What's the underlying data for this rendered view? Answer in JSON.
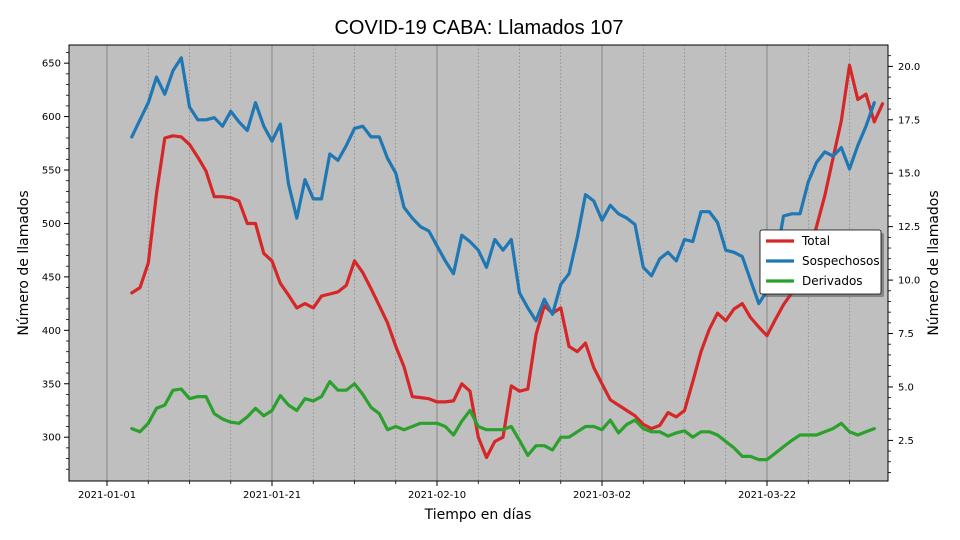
{
  "chart_data": {
    "type": "line",
    "title": "COVID-19 CABA: Llamados 107",
    "xlabel": "Tiempo en días",
    "ylabel_left": "Número de llamados",
    "ylabel_right": "Número de llamados",
    "grid": true,
    "legend_position": "center-right",
    "colors": {
      "background": "#bfbfbf",
      "Total": "#d62728",
      "Sospechosos": "#1f77b4",
      "Derivados": "#2ca02c"
    },
    "x_start": "2021-01-01",
    "x_tick_labels": [
      "2021-01-01",
      "2021-01-21",
      "2021-02-10",
      "2021-03-02",
      "2021-03-22"
    ],
    "y_left_ticks": [
      300,
      350,
      400,
      450,
      500,
      550,
      600,
      650
    ],
    "y_left_lim": [
      259,
      667
    ],
    "y_right_ticks": [
      "2.5",
      "5.0",
      "7.5",
      "10.0",
      "12.5",
      "15.0",
      "17.5",
      "20.0"
    ],
    "y_right_lim": [
      0.6,
      21.0
    ],
    "series": [
      {
        "name": "Total",
        "axis": "left",
        "values": [
          435,
          440,
          463,
          528,
          580,
          582,
          581,
          574,
          562,
          549,
          525,
          525,
          524,
          521,
          500,
          500,
          472,
          465,
          444,
          433,
          421,
          425,
          421,
          432,
          434,
          436,
          442,
          465,
          454,
          439,
          423,
          407,
          385,
          366,
          338,
          337,
          336,
          333,
          333,
          334,
          350,
          343,
          300,
          281,
          296,
          300,
          348,
          343,
          345,
          396,
          423,
          416,
          421,
          385,
          380,
          388,
          365,
          350,
          335,
          330,
          325,
          320,
          312,
          308,
          311,
          323,
          319,
          325,
          352,
          380,
          401,
          416,
          409,
          420,
          425,
          412,
          403,
          395,
          410,
          424,
          435,
          452,
          470,
          497,
          526,
          561,
          596,
          648,
          616,
          621,
          595,
          612
        ]
      },
      {
        "name": "Sospechosos",
        "axis": "right",
        "values": [
          16.7,
          17.5,
          18.3,
          19.5,
          18.7,
          19.8,
          20.4,
          18.1,
          17.5,
          17.5,
          17.6,
          17.2,
          17.9,
          17.4,
          17.0,
          18.3,
          17.2,
          16.5,
          17.3,
          14.5,
          12.9,
          14.7,
          13.8,
          13.8,
          15.9,
          15.6,
          16.3,
          17.1,
          17.2,
          16.7,
          16.7,
          15.7,
          15.0,
          13.4,
          12.9,
          12.5,
          12.3,
          11.6,
          10.9,
          10.3,
          12.1,
          11.8,
          11.4,
          10.6,
          11.9,
          11.4,
          11.9,
          9.4,
          8.7,
          8.1,
          9.1,
          8.4,
          9.8,
          10.3,
          12.0,
          14.0,
          13.7,
          12.8,
          13.5,
          13.1,
          12.9,
          12.6,
          10.6,
          10.2,
          11.0,
          11.3,
          10.9,
          11.9,
          11.8,
          13.2,
          13.2,
          12.7,
          11.4,
          11.3,
          11.1,
          10.0,
          8.9,
          9.5,
          10.8,
          13.0,
          13.1,
          13.1,
          14.6,
          15.5,
          16.0,
          15.8,
          16.2,
          15.2,
          16.3,
          17.2,
          18.3
        ]
      },
      {
        "name": "Derivados",
        "axis": "left",
        "values": [
          308,
          305,
          313,
          327,
          330,
          344,
          345,
          336,
          338,
          338,
          322,
          317,
          314,
          313,
          319,
          327,
          320,
          325,
          339,
          330,
          325,
          336,
          334,
          338,
          352,
          344,
          344,
          350,
          340,
          328,
          322,
          307,
          310,
          307,
          310,
          313,
          313,
          313,
          310,
          302,
          315,
          325,
          310,
          307,
          307,
          307,
          310,
          297,
          283,
          292,
          292,
          288,
          300,
          300,
          305,
          310,
          310,
          307,
          316,
          304,
          312,
          316,
          308,
          305,
          305,
          301,
          304,
          306,
          300,
          305,
          305,
          302,
          296,
          290,
          282,
          282,
          279,
          279,
          285,
          291,
          297,
          302,
          302,
          302,
          305,
          308,
          313,
          305,
          302,
          305,
          308
        ]
      }
    ]
  }
}
